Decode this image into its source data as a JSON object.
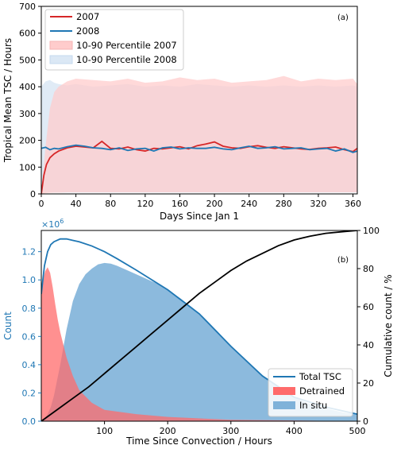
{
  "chart_data": [
    {
      "type": "line",
      "panel_label": "(a)",
      "xlabel": "Days Since Jan 1",
      "ylabel": "Tropical Mean TSC / Hours",
      "xlim": [
        0,
        365
      ],
      "ylim": [
        0,
        700
      ],
      "xticks": [
        0,
        40,
        80,
        120,
        160,
        200,
        240,
        280,
        320,
        360
      ],
      "yticks": [
        0,
        100,
        200,
        300,
        400,
        500,
        600,
        700
      ],
      "legend_position": "top-left",
      "series": [
        {
          "name": "2007",
          "color": "#d62728",
          "kind": "line",
          "x": [
            0,
            3,
            6,
            10,
            15,
            20,
            30,
            40,
            50,
            60,
            70,
            80,
            90,
            100,
            110,
            120,
            130,
            140,
            150,
            160,
            170,
            180,
            190,
            200,
            210,
            220,
            230,
            240,
            250,
            260,
            270,
            280,
            290,
            300,
            310,
            320,
            330,
            340,
            350,
            360,
            365
          ],
          "y": [
            0,
            70,
            110,
            135,
            150,
            160,
            172,
            178,
            175,
            172,
            196,
            170,
            168,
            175,
            165,
            160,
            170,
            168,
            172,
            176,
            168,
            180,
            186,
            194,
            178,
            172,
            170,
            176,
            180,
            174,
            170,
            176,
            172,
            168,
            166,
            170,
            172,
            175,
            165,
            158,
            170
          ]
        },
        {
          "name": "2008",
          "color": "#1f77b4",
          "kind": "line",
          "x": [
            0,
            5,
            10,
            15,
            20,
            30,
            40,
            50,
            60,
            70,
            80,
            90,
            100,
            110,
            120,
            130,
            140,
            150,
            160,
            170,
            180,
            190,
            200,
            210,
            220,
            230,
            240,
            250,
            260,
            270,
            280,
            290,
            300,
            310,
            320,
            330,
            340,
            350,
            360,
            365
          ],
          "y": [
            170,
            174,
            165,
            170,
            168,
            176,
            182,
            178,
            172,
            170,
            165,
            172,
            162,
            168,
            170,
            160,
            172,
            175,
            168,
            172,
            170,
            170,
            174,
            168,
            165,
            172,
            178,
            170,
            172,
            176,
            168,
            170,
            172,
            165,
            168,
            170,
            160,
            168,
            155,
            160
          ]
        },
        {
          "name": "10-90 Percentile 2007",
          "color": "#ffcccc",
          "kind": "band",
          "x": [
            0,
            5,
            10,
            15,
            20,
            30,
            40,
            60,
            80,
            100,
            120,
            140,
            160,
            180,
            200,
            220,
            240,
            260,
            280,
            300,
            320,
            340,
            360,
            365
          ],
          "lower": [
            0,
            3,
            4,
            5,
            5,
            6,
            6,
            6,
            6,
            6,
            6,
            6,
            6,
            6,
            6,
            6,
            6,
            6,
            6,
            6,
            6,
            6,
            6,
            6
          ],
          "upper": [
            0,
            180,
            320,
            380,
            400,
            420,
            430,
            425,
            420,
            430,
            415,
            420,
            435,
            425,
            430,
            415,
            420,
            425,
            440,
            420,
            430,
            425,
            430,
            410
          ]
        },
        {
          "name": "10-90 Percentile 2008",
          "color": "#dbe8f5",
          "kind": "band",
          "x": [
            0,
            5,
            10,
            15,
            20,
            30,
            40,
            60,
            80,
            100,
            120,
            140,
            160,
            180,
            200,
            220,
            240,
            260,
            280,
            300,
            320,
            340,
            360,
            365
          ],
          "lower": [
            8,
            7,
            6,
            5,
            5,
            5,
            5,
            5,
            5,
            5,
            5,
            5,
            5,
            5,
            5,
            5,
            5,
            5,
            5,
            5,
            5,
            5,
            5,
            5
          ],
          "upper": [
            400,
            420,
            425,
            415,
            410,
            405,
            410,
            400,
            405,
            410,
            400,
            405,
            400,
            410,
            405,
            400,
            405,
            400,
            405,
            400,
            405,
            400,
            405,
            400
          ]
        }
      ]
    },
    {
      "type": "area",
      "panel_label": "(b)",
      "xlabel": "Time Since Convection / Hours",
      "ylabel_left": "Count",
      "ylabel_right": "Cumulative count / %",
      "scale_note": "×10",
      "scale_exponent": "6",
      "xlim": [
        0,
        500
      ],
      "ylim_left": [
        0,
        1.35
      ],
      "ylim_right": [
        0,
        100
      ],
      "xticks": [
        100,
        200,
        300,
        400,
        500
      ],
      "yticks_left": [
        0.0,
        0.2,
        0.4,
        0.6,
        0.8,
        1.0,
        1.2
      ],
      "yticks_right": [
        0,
        20,
        40,
        60,
        80,
        100
      ],
      "legend_position": "bottom-right",
      "series": [
        {
          "name": "Total TSC",
          "color": "#1f77b4",
          "kind": "line",
          "axis": "left",
          "x": [
            0,
            5,
            10,
            15,
            20,
            25,
            30,
            40,
            50,
            60,
            80,
            100,
            120,
            150,
            200,
            250,
            300,
            350,
            400,
            450,
            500
          ],
          "y": [
            0.9,
            1.1,
            1.2,
            1.25,
            1.27,
            1.28,
            1.29,
            1.29,
            1.28,
            1.27,
            1.24,
            1.2,
            1.15,
            1.07,
            0.93,
            0.76,
            0.53,
            0.32,
            0.17,
            0.1,
            0.05
          ]
        },
        {
          "name": "Detrained",
          "color": "#ff6b6b",
          "kind": "area",
          "axis": "left",
          "x": [
            0,
            3,
            6,
            10,
            14,
            18,
            22,
            26,
            30,
            40,
            50,
            60,
            80,
            100,
            150,
            200,
            300,
            400,
            500
          ],
          "y": [
            0.9,
            1.0,
            1.06,
            1.09,
            1.05,
            0.95,
            0.83,
            0.72,
            0.63,
            0.45,
            0.32,
            0.22,
            0.13,
            0.08,
            0.05,
            0.03,
            0.01,
            0.005,
            0
          ]
        },
        {
          "name": "In situ",
          "color": "#7fb2d9",
          "kind": "area",
          "axis": "left",
          "x": [
            0,
            5,
            10,
            15,
            20,
            30,
            40,
            50,
            60,
            70,
            80,
            90,
            100,
            110,
            120,
            140,
            160,
            180,
            200,
            220,
            240,
            260,
            280,
            300,
            320,
            340,
            360,
            380,
            400,
            420,
            440,
            460,
            480,
            500
          ],
          "y": [
            0,
            0.02,
            0.05,
            0.1,
            0.18,
            0.4,
            0.65,
            0.85,
            0.97,
            1.04,
            1.08,
            1.11,
            1.12,
            1.115,
            1.1,
            1.06,
            1.02,
            0.98,
            0.93,
            0.87,
            0.8,
            0.72,
            0.63,
            0.53,
            0.44,
            0.36,
            0.29,
            0.23,
            0.17,
            0.13,
            0.1,
            0.08,
            0.06,
            0.05
          ]
        },
        {
          "name": "Cumulative",
          "color": "#000000",
          "kind": "line",
          "axis": "right",
          "x": [
            0,
            25,
            50,
            75,
            100,
            125,
            150,
            175,
            200,
            225,
            250,
            275,
            300,
            325,
            350,
            375,
            400,
            425,
            450,
            475,
            500
          ],
          "y": [
            0,
            6,
            12,
            18,
            25,
            32,
            39,
            46,
            53,
            60,
            67,
            73,
            79,
            84,
            88,
            92,
            95,
            97,
            98.5,
            99.3,
            100
          ]
        }
      ]
    }
  ]
}
